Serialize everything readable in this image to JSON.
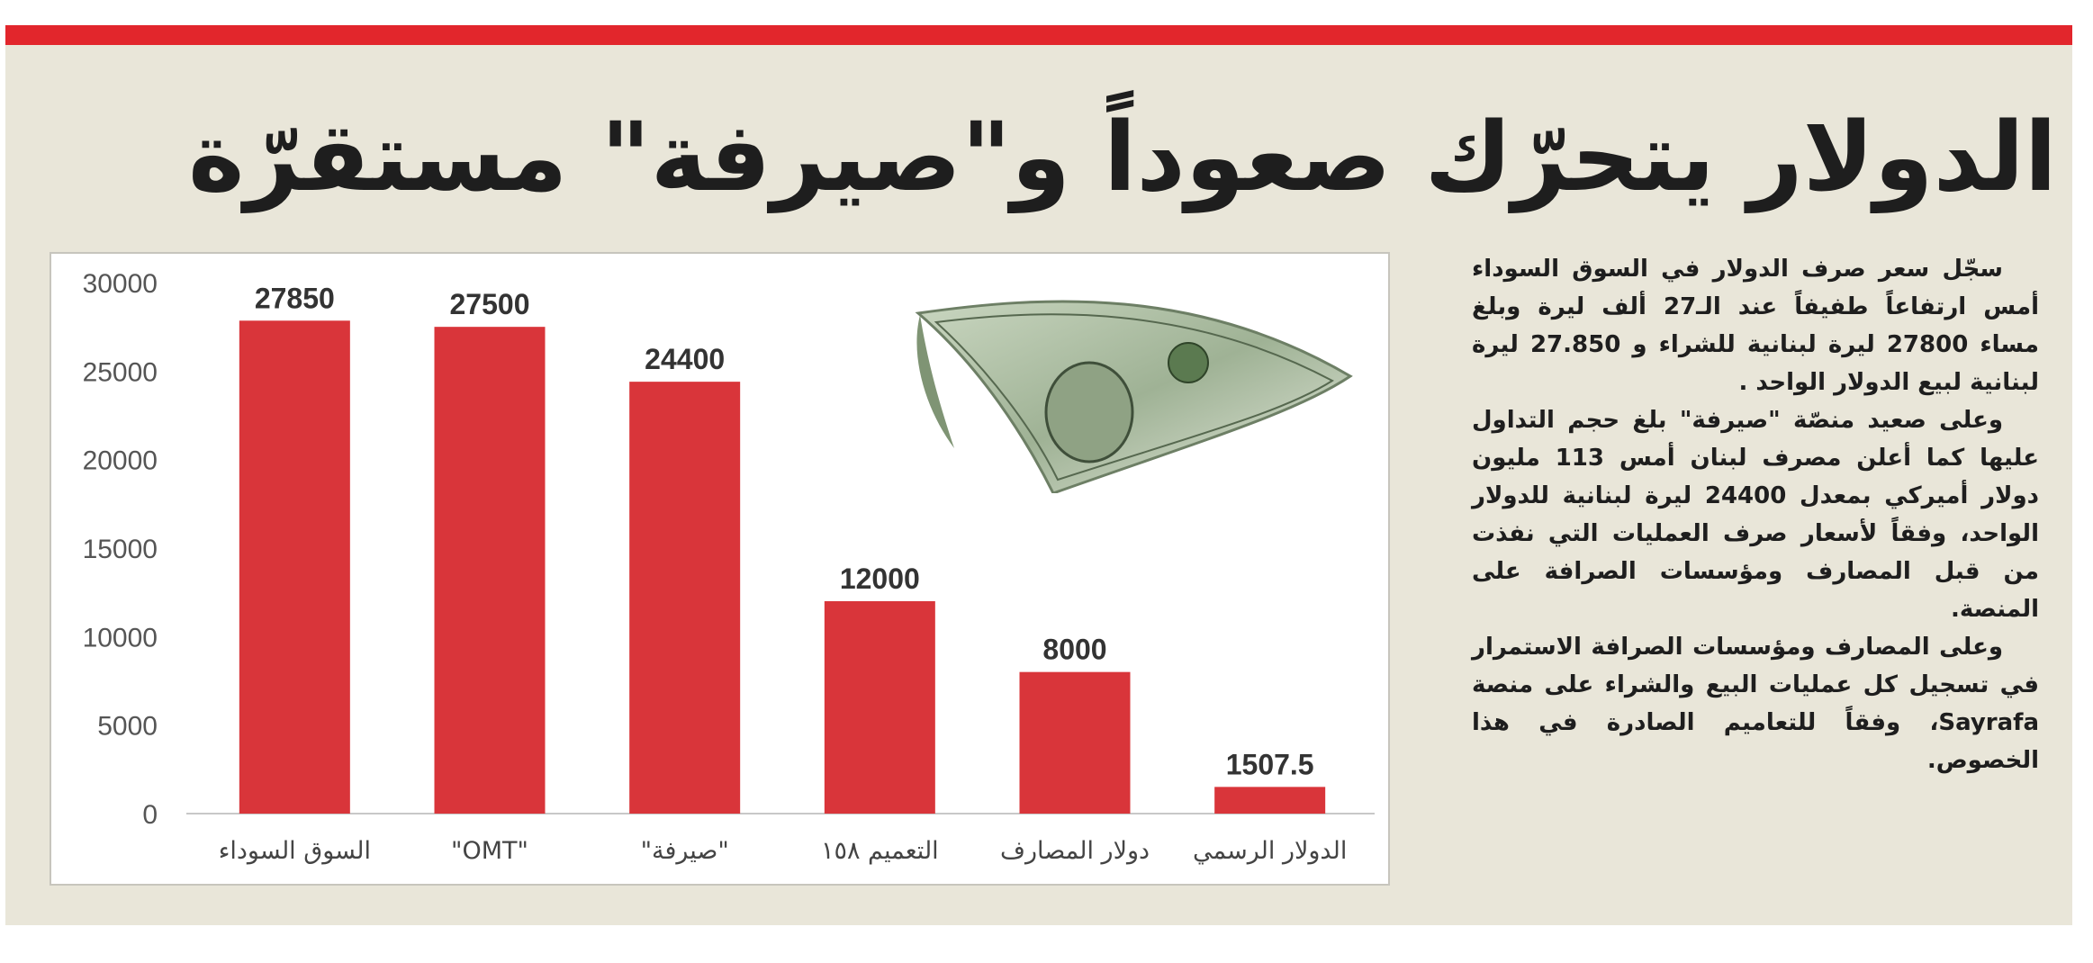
{
  "headline": "الدولار يتحرّك صعوداً و\"صيرفة\" مستقرّة",
  "article": {
    "paragraphs": [
      "سجّل سعر صرف الدولار في السوق السوداء أمس ارتفاعاً طفيفاً عند الـ27 ألف ليرة وبلغ مساء 27800 ليرة لبنانية للشراء و 27.850 ليرة لبنانية لبيع الدولار الواحد .",
      "وعلى صعيد منصّة \"صيرفة\" بلغ حجم التداول عليها كما أعلن مصرف لبنان أمس 113 مليون دولار أميركي بمعدل 24400 ليرة لبنانية للدولار الواحد، وفقاً لأسعار صرف العمليات التي نفذت من قبل المصارف ومؤسسات الصرافة على المنصة.",
      "وعلى المصارف ومؤسسات الصرافة الاستمرار في تسجيل كل عمليات البيع والشراء على منصة Sayrafa، وفقاً للتعاميم الصادرة في هذا الخصوص."
    ]
  },
  "illustration": {
    "name": "dollar-bill-icon"
  },
  "colors": {
    "accent": "#e2262c",
    "bar": "#d9353a",
    "panel": "#e9e6d9",
    "text": "#1e1e1e"
  },
  "chart_data": {
    "type": "bar",
    "title": "",
    "xlabel": "",
    "ylabel": "",
    "categories": [
      "السوق السوداء",
      "\"OMT\"",
      "\"صيرفة\"",
      "التعميم ١٥٨",
      "دولار المصارف",
      "الدولار الرسمي"
    ],
    "values": [
      27850,
      27500,
      24400,
      12000,
      8000,
      1507.5
    ],
    "value_labels": [
      "27850",
      "27500",
      "24400",
      "12000",
      "8000",
      "1507.5"
    ],
    "yticks": [
      "0",
      "5000",
      "10000",
      "15000",
      "20000",
      "25000",
      "30000"
    ],
    "ylim": [
      0,
      30000
    ],
    "grid": false,
    "legend": "none"
  }
}
